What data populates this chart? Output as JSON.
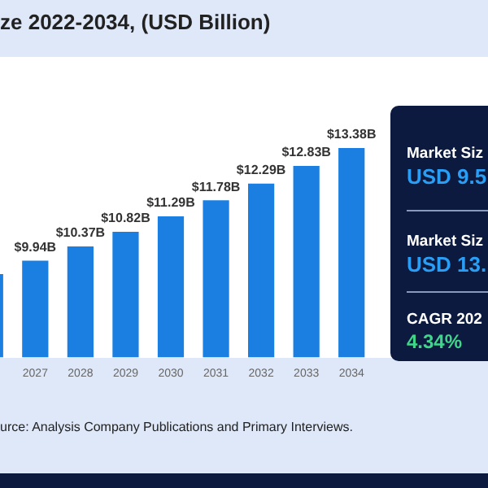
{
  "chart_data": {
    "type": "bar",
    "title": "ze 2022-2034, (USD Billion)",
    "categories": [
      null,
      "2027",
      "2028",
      "2029",
      "2030",
      "2031",
      "2032",
      "2033",
      "2034"
    ],
    "values": [
      9.53,
      9.94,
      10.37,
      10.82,
      11.29,
      11.78,
      12.29,
      12.83,
      13.38
    ],
    "value_labels": [
      null,
      "$9.94B",
      "$10.37B",
      "$10.82B",
      "$11.29B",
      "$11.78B",
      "$12.29B",
      "$12.83B",
      "$13.38B"
    ],
    "color": "#1a7fe0",
    "grid": false,
    "legend": false,
    "tick_labels": "x",
    "annotations": [
      "urce: Analysis Company Publications and Primary Interviews.",
      "Market Siz",
      "USD 9.5",
      "Market Siz",
      "USD 13.",
      "CAGR 202",
      "4.34%"
    ]
  }
}
